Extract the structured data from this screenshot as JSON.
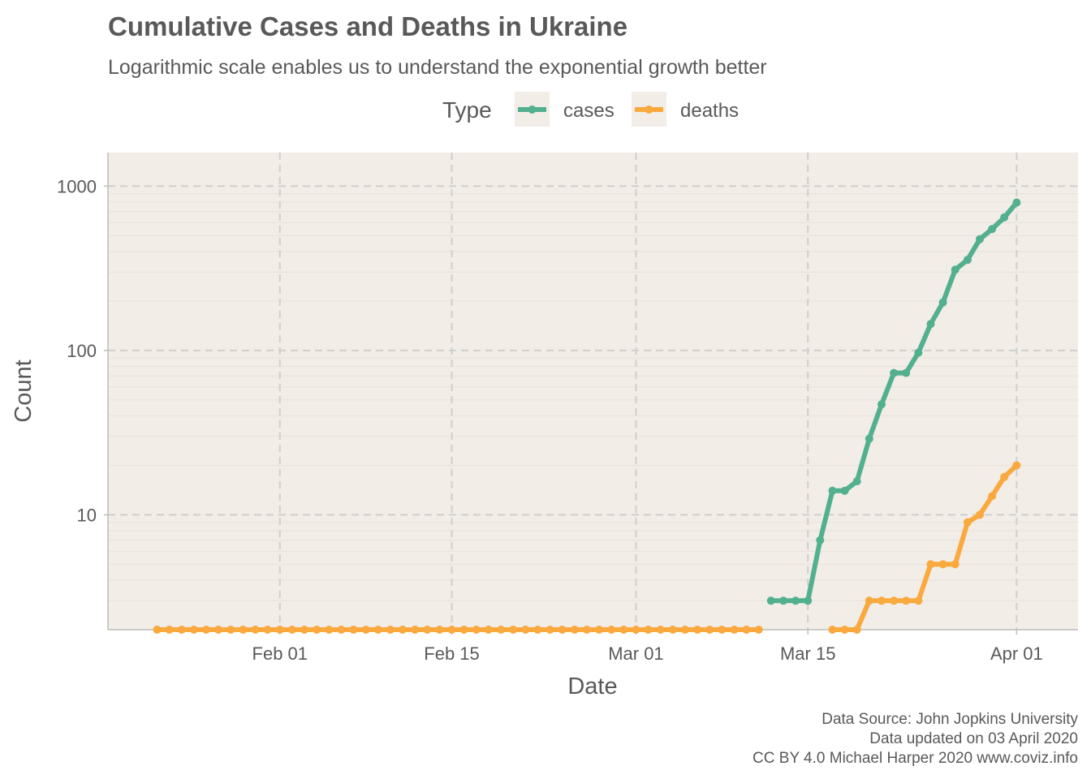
{
  "title": "Cumulative Cases and Deaths in Ukraine",
  "subtitle": "Logarithmic scale enables us to understand the exponential growth better",
  "legend": {
    "title": "Type",
    "items": [
      {
        "label": "cases",
        "color": "#52b08f"
      },
      {
        "label": "deaths",
        "color": "#f9a93e"
      }
    ]
  },
  "caption": {
    "line1": "Data Source: John Jopkins University",
    "line2": "Data updated on 03 April 2020",
    "line3": "CC BY 4.0 Michael Harper 2020 www.coviz.info"
  },
  "colors": {
    "panel_bg": "#f2ede6",
    "grid_major": "#cfcfcf",
    "grid_minor": "#e6e2dc",
    "axis_line": "#bdbdbd",
    "text": "#595959"
  },
  "chart_data": {
    "type": "line",
    "x_type": "date",
    "y_scale": "log10",
    "xlabel": "Date",
    "ylabel": "Count",
    "xlim": [
      "2020-01-18",
      "2020-04-06"
    ],
    "ylim": [
      2,
      1600
    ],
    "x_ticks": [
      {
        "date": "2020-02-01",
        "label": "Feb 01"
      },
      {
        "date": "2020-02-15",
        "label": "Feb 15"
      },
      {
        "date": "2020-03-01",
        "label": "Mar 01"
      },
      {
        "date": "2020-03-15",
        "label": "Mar 15"
      },
      {
        "date": "2020-04-01",
        "label": "Apr 01"
      }
    ],
    "y_ticks": [
      {
        "value": 10,
        "label": "10"
      },
      {
        "value": 100,
        "label": "100"
      },
      {
        "value": 1000,
        "label": "1000"
      }
    ],
    "grid": true,
    "legend_position": "top",
    "series": [
      {
        "name": "cases",
        "color": "#52b08f",
        "points": [
          [
            "2020-03-12",
            3
          ],
          [
            "2020-03-13",
            3
          ],
          [
            "2020-03-14",
            3
          ],
          [
            "2020-03-15",
            3
          ],
          [
            "2020-03-16",
            7
          ],
          [
            "2020-03-17",
            14
          ],
          [
            "2020-03-18",
            14
          ],
          [
            "2020-03-19",
            16
          ],
          [
            "2020-03-20",
            29
          ],
          [
            "2020-03-21",
            47
          ],
          [
            "2020-03-22",
            73
          ],
          [
            "2020-03-23",
            73
          ],
          [
            "2020-03-24",
            97
          ],
          [
            "2020-03-25",
            145
          ],
          [
            "2020-03-26",
            196
          ],
          [
            "2020-03-27",
            310
          ],
          [
            "2020-03-28",
            356
          ],
          [
            "2020-03-29",
            475
          ],
          [
            "2020-03-30",
            548
          ],
          [
            "2020-03-31",
            645
          ],
          [
            "2020-04-01",
            794
          ]
        ]
      },
      {
        "name": "deaths",
        "color": "#f9a93e",
        "points": [
          [
            "2020-01-22",
            0
          ],
          [
            "2020-01-23",
            0
          ],
          [
            "2020-01-24",
            0
          ],
          [
            "2020-01-25",
            0
          ],
          [
            "2020-01-26",
            0
          ],
          [
            "2020-01-27",
            0
          ],
          [
            "2020-01-28",
            0
          ],
          [
            "2020-01-29",
            0
          ],
          [
            "2020-01-30",
            0
          ],
          [
            "2020-01-31",
            0
          ],
          [
            "2020-02-01",
            0
          ],
          [
            "2020-02-02",
            0
          ],
          [
            "2020-02-03",
            0
          ],
          [
            "2020-02-04",
            0
          ],
          [
            "2020-02-05",
            0
          ],
          [
            "2020-02-06",
            0
          ],
          [
            "2020-02-07",
            0
          ],
          [
            "2020-02-08",
            0
          ],
          [
            "2020-02-09",
            0
          ],
          [
            "2020-02-10",
            0
          ],
          [
            "2020-02-11",
            0
          ],
          [
            "2020-02-12",
            0
          ],
          [
            "2020-02-13",
            0
          ],
          [
            "2020-02-14",
            0
          ],
          [
            "2020-02-15",
            0
          ],
          [
            "2020-02-16",
            0
          ],
          [
            "2020-02-17",
            0
          ],
          [
            "2020-02-18",
            0
          ],
          [
            "2020-02-19",
            0
          ],
          [
            "2020-02-20",
            0
          ],
          [
            "2020-02-21",
            0
          ],
          [
            "2020-02-22",
            0
          ],
          [
            "2020-02-23",
            0
          ],
          [
            "2020-02-24",
            0
          ],
          [
            "2020-02-25",
            0
          ],
          [
            "2020-02-26",
            0
          ],
          [
            "2020-02-27",
            0
          ],
          [
            "2020-02-28",
            0
          ],
          [
            "2020-02-29",
            0
          ],
          [
            "2020-03-01",
            0
          ],
          [
            "2020-03-02",
            0
          ],
          [
            "2020-03-03",
            0
          ],
          [
            "2020-03-04",
            0
          ],
          [
            "2020-03-05",
            0
          ],
          [
            "2020-03-06",
            0
          ],
          [
            "2020-03-07",
            0
          ],
          [
            "2020-03-08",
            0
          ],
          [
            "2020-03-09",
            0
          ],
          [
            "2020-03-10",
            0
          ],
          [
            "2020-03-11",
            0
          ],
          [
            "2020-03-17",
            0
          ],
          [
            "2020-03-18",
            0
          ],
          [
            "2020-03-19",
            0
          ],
          [
            "2020-03-20",
            3
          ],
          [
            "2020-03-21",
            3
          ],
          [
            "2020-03-22",
            3
          ],
          [
            "2020-03-23",
            3
          ],
          [
            "2020-03-24",
            3
          ],
          [
            "2020-03-25",
            5
          ],
          [
            "2020-03-26",
            5
          ],
          [
            "2020-03-27",
            5
          ],
          [
            "2020-03-28",
            9
          ],
          [
            "2020-03-29",
            10
          ],
          [
            "2020-03-30",
            13
          ],
          [
            "2020-03-31",
            17
          ],
          [
            "2020-04-01",
            20
          ]
        ]
      }
    ]
  }
}
